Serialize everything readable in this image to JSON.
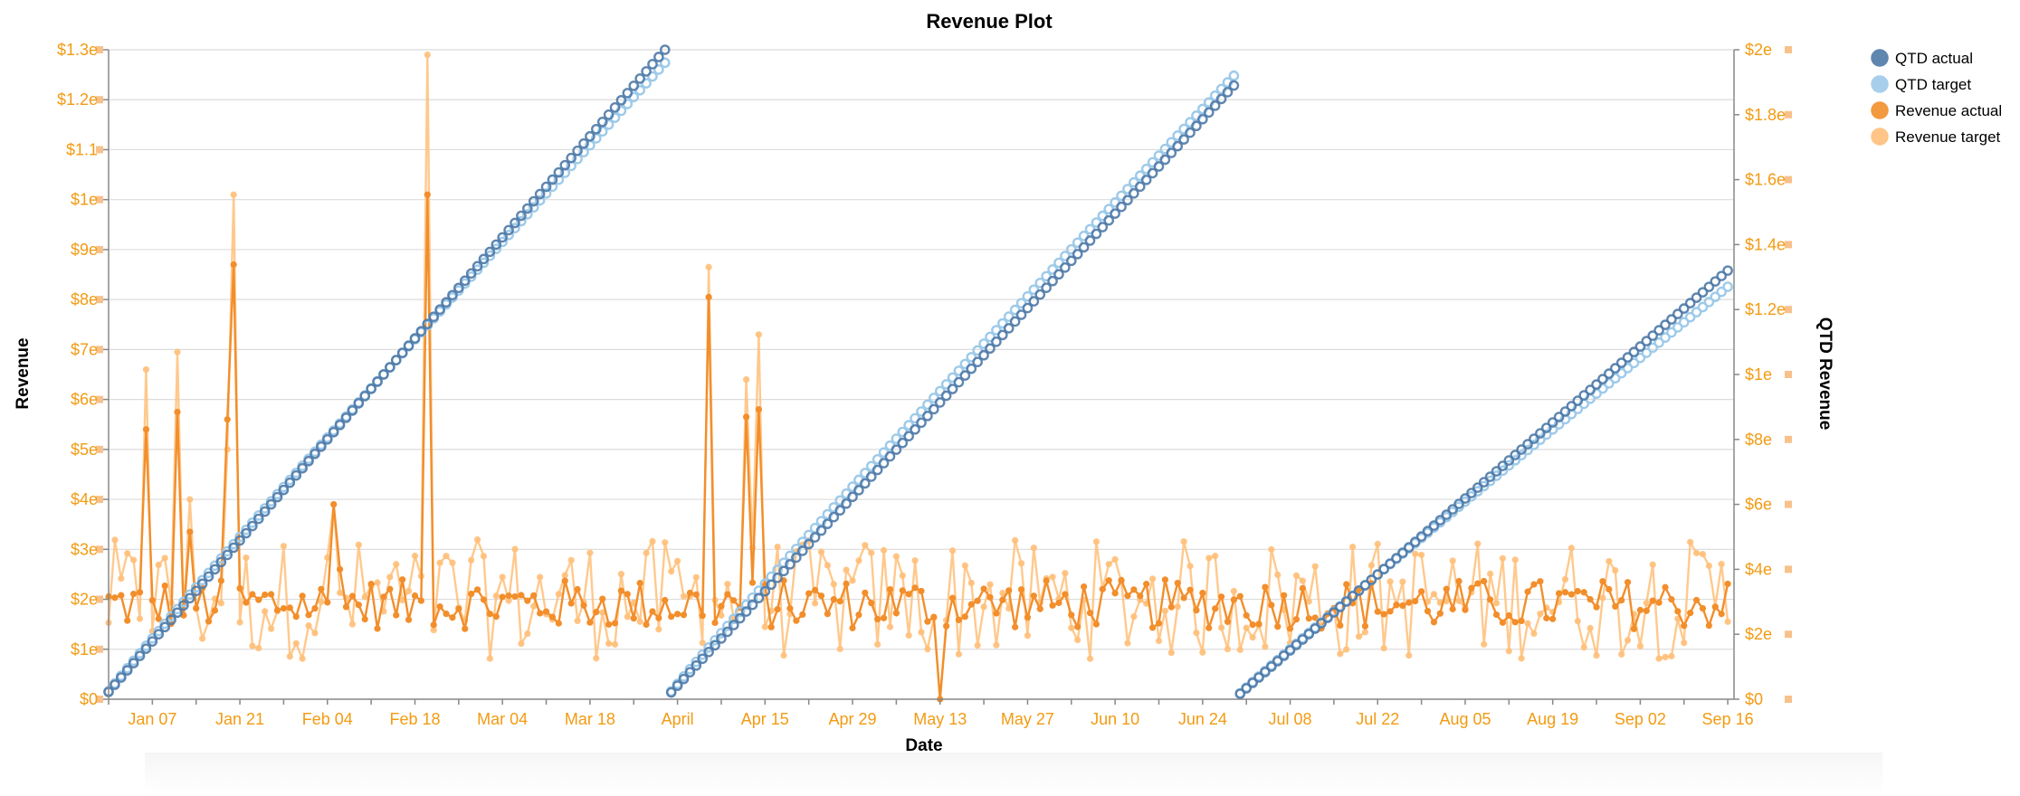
{
  "chart_data": {
    "type": "line",
    "title": "Revenue Plot",
    "xlabel": "Date",
    "ylabel_left": "Revenue",
    "ylabel_right": "QTD Revenue",
    "x_tick_labels": [
      "Jan 07",
      "Jan 21",
      "Feb 04",
      "Feb 18",
      "Mar 04",
      "Mar 18",
      "April",
      "Apr 15",
      "Apr 29",
      "May 13",
      "May 27",
      "Jun 10",
      "Jun 24",
      "Jul 08",
      "Jul 22",
      "Aug 05",
      "Aug 19",
      "Sep 02",
      "Sep 16"
    ],
    "x_range": [
      "Dec 31",
      "Sep 16"
    ],
    "y_left_tick_labels": [
      "$0",
      "$1e",
      "$2e",
      "$3e",
      "$4e",
      "$5e",
      "$6e",
      "$7e",
      "$8e",
      "$9e",
      "$1e",
      "$1.1",
      "$1.2e",
      "$1.3e"
    ],
    "y_left_values": [
      0,
      1,
      2,
      3,
      4,
      5,
      6,
      7,
      8,
      9,
      10,
      11,
      12,
      13
    ],
    "y_right_tick_labels": [
      "$0",
      "$2e",
      "$4e",
      "$6e",
      "$8e",
      "$1e",
      "$1.2e",
      "$1.4e",
      "$1.6e",
      "$1.8e",
      "$2e"
    ],
    "y_right_values": [
      0,
      2,
      4,
      6,
      8,
      10,
      12,
      14,
      16,
      18,
      20
    ],
    "ylim_left": [
      0,
      13
    ],
    "ylim_right": [
      0,
      20
    ],
    "grid": true,
    "legend_position": "right",
    "series": [
      {
        "name": "QTD actual",
        "color": "#4e79a7",
        "axis": "right",
        "marker": "hollow-circle"
      },
      {
        "name": "QTD target",
        "color": "#9ecae9",
        "axis": "right",
        "marker": "hollow-circle"
      },
      {
        "name": "Revenue actual",
        "color": "#f28e2b",
        "axis": "left",
        "marker": "filled-circle"
      },
      {
        "name": "Revenue target",
        "color": "#ffbf79",
        "axis": "left",
        "marker": "filled-circle"
      }
    ],
    "quarters": [
      {
        "start_day": 0,
        "end_day": 89,
        "qtd_actual_end": 20.0,
        "qtd_target_end": 19.6
      },
      {
        "start_day": 90,
        "end_day": 180,
        "qtd_actual_end": 18.9,
        "qtd_target_end": 19.2
      },
      {
        "start_day": 181,
        "end_day": 259,
        "qtd_actual_end": 13.2,
        "qtd_target_end": 12.7
      }
    ],
    "revenue_actual_spikes": [
      {
        "day": 6,
        "value": 5.4
      },
      {
        "day": 11,
        "value": 5.75
      },
      {
        "day": 13,
        "value": 3.35
      },
      {
        "day": 19,
        "value": 5.6
      },
      {
        "day": 20,
        "value": 8.7
      },
      {
        "day": 36,
        "value": 3.9
      },
      {
        "day": 37,
        "value": 2.6
      },
      {
        "day": 51,
        "value": 10.1
      },
      {
        "day": 96,
        "value": 8.05
      },
      {
        "day": 102,
        "value": 5.65
      },
      {
        "day": 104,
        "value": 5.8
      },
      {
        "day": 133,
        "value": 0
      }
    ],
    "revenue_target_spikes": [
      {
        "day": 6,
        "value": 6.6
      },
      {
        "day": 11,
        "value": 6.95
      },
      {
        "day": 13,
        "value": 4.0
      },
      {
        "day": 19,
        "value": 5.0
      },
      {
        "day": 20,
        "value": 10.1
      },
      {
        "day": 36,
        "value": 3.9
      },
      {
        "day": 51,
        "value": 12.9
      },
      {
        "day": 96,
        "value": 8.65
      },
      {
        "day": 102,
        "value": 6.4
      },
      {
        "day": 104,
        "value": 7.3
      },
      {
        "day": 133,
        "value": 0
      }
    ],
    "revenue_actual_typical": 1.9,
    "revenue_target_typical": 2.0
  }
}
